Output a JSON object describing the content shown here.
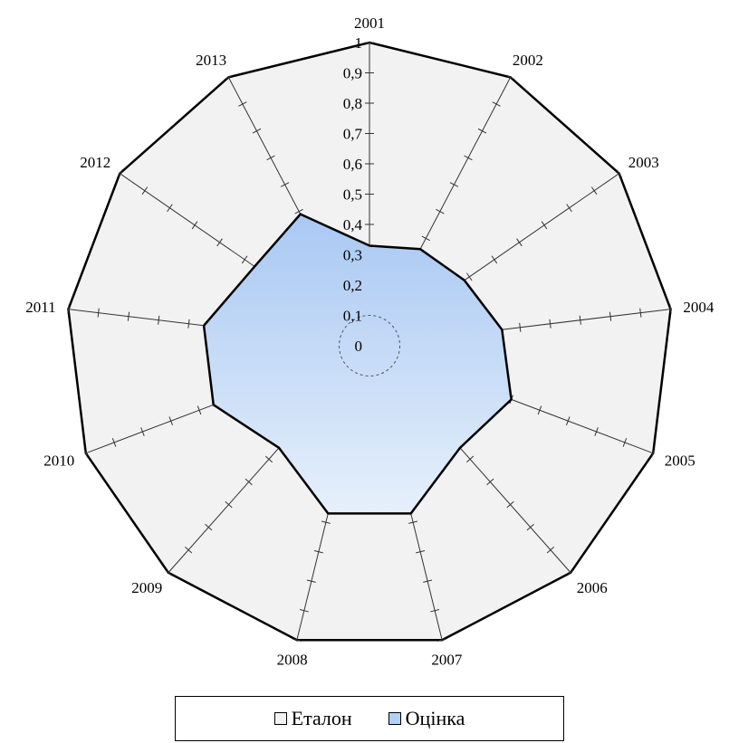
{
  "chart_data": {
    "type": "radar",
    "categories": [
      "2001",
      "2002",
      "2003",
      "2004",
      "2005",
      "2006",
      "2007",
      "2008",
      "2009",
      "2010",
      "2011",
      "2012",
      "2013"
    ],
    "series": [
      {
        "name": "Еталон",
        "values": [
          1,
          1,
          1,
          1,
          1,
          1,
          1,
          1,
          1,
          1,
          1,
          1,
          1
        ],
        "color": "#f2f2f2",
        "stroke": "#000000"
      },
      {
        "name": "Оцінка",
        "values": [
          0.33,
          0.36,
          0.38,
          0.44,
          0.5,
          0.45,
          0.57,
          0.57,
          0.45,
          0.55,
          0.55,
          0.46,
          0.49
        ],
        "color": "#b3d1f5",
        "stroke": "#000000"
      }
    ],
    "rlim": [
      0,
      1
    ],
    "ticks": [
      "0",
      "0,1",
      "0,2",
      "0,3",
      "0,4",
      "0,5",
      "0,6",
      "0,7",
      "0,8",
      "0,9",
      "1"
    ],
    "legend_position": "bottom"
  },
  "legend": {
    "items": [
      {
        "label": "Еталон",
        "color": "#f2f2f2"
      },
      {
        "label": "Оцінка",
        "color": "#b3d1f5"
      }
    ]
  }
}
